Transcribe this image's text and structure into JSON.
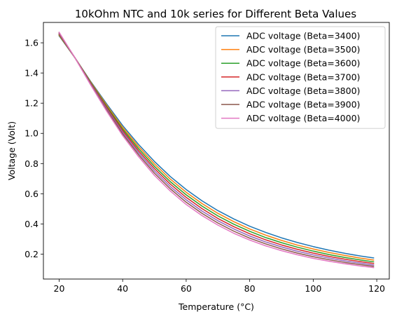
{
  "chart_data": {
    "type": "line",
    "title": "10kOhm NTC and 10k series for Different Beta Values",
    "xlabel": "Temperature (°C)",
    "ylabel": "Voltage (Volt)",
    "xlim": [
      15.05,
      123.95
    ],
    "ylim": [
      0.035,
      1.735
    ],
    "xticks": [
      20,
      40,
      60,
      80,
      100,
      120
    ],
    "xtick_labels": [
      "20",
      "40",
      "60",
      "80",
      "100",
      "120"
    ],
    "yticks": [
      0.2,
      0.4,
      0.6,
      0.8,
      1.0,
      1.2,
      1.4,
      1.6
    ],
    "ytick_labels": [
      "0.2",
      "0.4",
      "0.6",
      "0.8",
      "1.0",
      "1.2",
      "1.4",
      "1.6"
    ],
    "grid": false,
    "legend_position": "top-right",
    "x": [
      20,
      25,
      30,
      35,
      40,
      45,
      50,
      55,
      60,
      65,
      70,
      75,
      80,
      85,
      90,
      95,
      100,
      105,
      110,
      115,
      119
    ],
    "series": [
      {
        "name": "ADC voltage (Beta=3400)",
        "color": "#1f77b4",
        "values": [
          1.646,
          1.5,
          1.342,
          1.194,
          1.052,
          0.927,
          0.814,
          0.714,
          0.628,
          0.553,
          0.488,
          0.433,
          0.385,
          0.344,
          0.308,
          0.277,
          0.25,
          0.226,
          0.205,
          0.187,
          0.175
        ]
      },
      {
        "name": "ADC voltage (Beta=3500)",
        "color": "#ff7f0e",
        "values": [
          1.65,
          1.5,
          1.338,
          1.186,
          1.04,
          0.913,
          0.798,
          0.697,
          0.61,
          0.535,
          0.47,
          0.415,
          0.367,
          0.326,
          0.291,
          0.26,
          0.234,
          0.211,
          0.191,
          0.173,
          0.161
        ]
      },
      {
        "name": "ADC voltage (Beta=3600)",
        "color": "#2ca02c",
        "values": [
          1.654,
          1.5,
          1.334,
          1.178,
          1.029,
          0.899,
          0.782,
          0.68,
          0.593,
          0.518,
          0.453,
          0.398,
          0.351,
          0.31,
          0.276,
          0.246,
          0.22,
          0.197,
          0.178,
          0.161,
          0.149
        ]
      },
      {
        "name": "ADC voltage (Beta=3700)",
        "color": "#d62728",
        "values": [
          1.658,
          1.5,
          1.33,
          1.17,
          1.018,
          0.885,
          0.767,
          0.664,
          0.576,
          0.501,
          0.436,
          0.382,
          0.335,
          0.295,
          0.261,
          0.232,
          0.207,
          0.185,
          0.166,
          0.15,
          0.138
        ]
      },
      {
        "name": "ADC voltage (Beta=3800)",
        "color": "#9467bd",
        "values": [
          1.662,
          1.5,
          1.326,
          1.162,
          1.007,
          0.872,
          0.752,
          0.648,
          0.56,
          0.485,
          0.421,
          0.367,
          0.32,
          0.281,
          0.248,
          0.219,
          0.195,
          0.174,
          0.155,
          0.14,
          0.128
        ]
      },
      {
        "name": "ADC voltage (Beta=3900)",
        "color": "#8c564b",
        "values": [
          1.666,
          1.5,
          1.322,
          1.154,
          0.996,
          0.859,
          0.737,
          0.633,
          0.544,
          0.47,
          0.406,
          0.352,
          0.306,
          0.268,
          0.235,
          0.207,
          0.183,
          0.163,
          0.145,
          0.13,
          0.119
        ]
      },
      {
        "name": "ADC voltage (Beta=4000)",
        "color": "#e377c2",
        "values": [
          1.67,
          1.5,
          1.318,
          1.146,
          0.985,
          0.846,
          0.722,
          0.618,
          0.529,
          0.455,
          0.392,
          0.338,
          0.293,
          0.255,
          0.223,
          0.196,
          0.172,
          0.153,
          0.136,
          0.121,
          0.111
        ]
      }
    ]
  }
}
